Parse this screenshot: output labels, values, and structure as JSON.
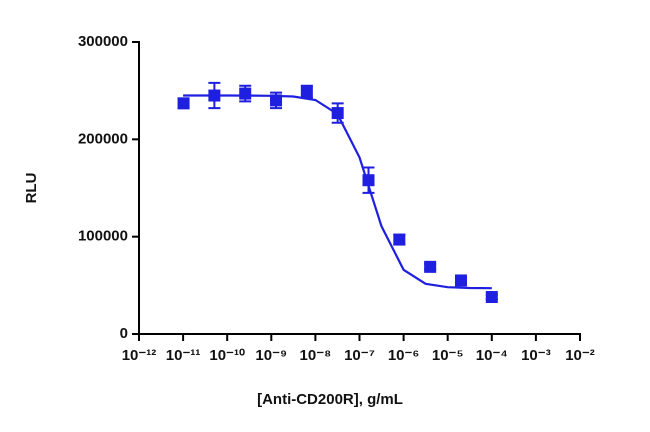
{
  "chart_data": {
    "type": "scatter",
    "x_label": "[Anti-CD200R], g/mL",
    "y_label": "RLU",
    "xscale": "log",
    "xlim": [
      1e-12,
      0.01
    ],
    "xticks": [
      {
        "value": 1e-12,
        "label": "10⁻¹²"
      },
      {
        "value": 1e-11,
        "label": "10⁻¹¹"
      },
      {
        "value": 1e-10,
        "label": "10⁻¹⁰"
      },
      {
        "value": 1e-09,
        "label": "10⁻⁹"
      },
      {
        "value": 1e-08,
        "label": "10⁻⁸"
      },
      {
        "value": 1e-07,
        "label": "10⁻⁷"
      },
      {
        "value": 1e-06,
        "label": "10⁻⁶"
      },
      {
        "value": 1e-05,
        "label": "10⁻⁵"
      },
      {
        "value": 0.0001,
        "label": "10⁻⁴"
      },
      {
        "value": 0.001,
        "label": "10⁻³"
      },
      {
        "value": 0.01,
        "label": "10⁻²"
      }
    ],
    "ylim": [
      0,
      300000
    ],
    "yticks": [
      0,
      100000,
      200000,
      300000
    ],
    "color": "#1f1fe0",
    "points": {
      "x": [
        1.024e-11,
        5.12e-11,
        2.56e-10,
        1.28e-09,
        6.4e-09,
        3.2e-08,
        1.6e-07,
        8e-07,
        4e-06,
        2e-05,
        0.0001
      ],
      "values": [
        237000,
        245000,
        247000,
        240000,
        249000,
        227000,
        158000,
        97000,
        69000,
        55000,
        38000
      ],
      "errors": [
        5000,
        13000,
        8000,
        8000,
        6000,
        10000,
        13000,
        5000,
        3000,
        2000,
        2000
      ]
    },
    "curve": {
      "x": [
        1e-11,
        3.16e-11,
        1e-10,
        3.16e-10,
        1e-09,
        3.16e-09,
        1e-08,
        3.16e-08,
        1e-07,
        3.16e-07,
        1e-06,
        3.16e-06,
        1e-05,
        3.16e-05,
        0.0001
      ],
      "values": [
        245000,
        245000,
        244990,
        244950,
        244760,
        243960,
        240400,
        226000,
        181400,
        110600,
        65970,
        51580,
        48050,
        47240,
        47050
      ]
    }
  }
}
